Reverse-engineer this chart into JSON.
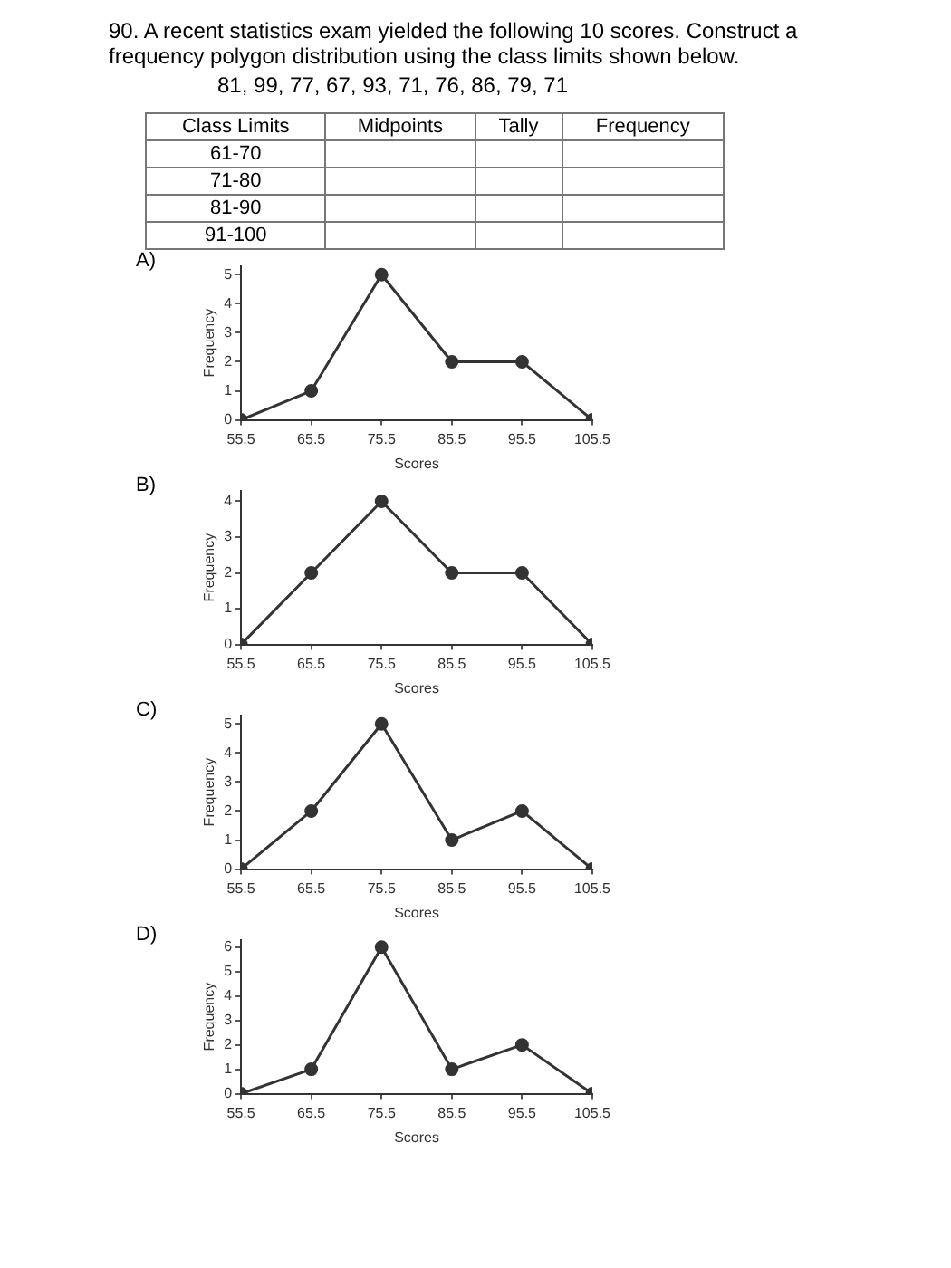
{
  "chart_data": [
    {
      "type": "other",
      "title": "90. A recent statistics exam yielded the following 10 scores. Construct a frequency polygon distribution using the class limits shown below.",
      "subtitle": "81, 99, 77, 67, 93, 71, 76, 86, 79, 71",
      "categories": [
        "Class Limits",
        "Midpoints",
        "Tally",
        "Frequency"
      ],
      "y_categories": [
        "61-70",
        "71-80",
        "81-90",
        "91-100"
      ]
    },
    {
      "type": "line",
      "title": "A)",
      "xlabel": "Scores",
      "ylabel": "Frequency",
      "marker": "circle",
      "x": [
        55.5,
        65.5,
        75.5,
        85.5,
        95.5,
        105.5
      ],
      "xlim": [
        55.5,
        105.5
      ],
      "xticks": [
        55.5,
        65.5,
        75.5,
        85.5,
        95.5,
        105.5
      ],
      "ylim": [
        0,
        5.3
      ],
      "yticks": [
        0,
        1,
        2,
        3,
        4,
        5
      ],
      "series": [
        {
          "color": "#333333",
          "values": [
            0,
            1,
            5,
            2,
            2,
            0
          ]
        }
      ]
    },
    {
      "type": "line",
      "title": "B)",
      "xlabel": "Scores",
      "ylabel": "Frequency",
      "marker": "circle",
      "x": [
        55.5,
        65.5,
        75.5,
        85.5,
        95.5,
        105.5
      ],
      "xlim": [
        55.5,
        105.5
      ],
      "xticks": [
        55.5,
        65.5,
        75.5,
        85.5,
        95.5,
        105.5
      ],
      "ylim": [
        0,
        4.3
      ],
      "yticks": [
        0,
        1,
        2,
        3,
        4
      ],
      "series": [
        {
          "color": "#333333",
          "values": [
            0,
            2,
            4,
            2,
            2,
            0
          ]
        }
      ]
    },
    {
      "type": "line",
      "title": "C)",
      "xlabel": "Scores",
      "ylabel": "Frequency",
      "marker": "circle",
      "x": [
        55.5,
        65.5,
        75.5,
        85.5,
        95.5,
        105.5
      ],
      "xlim": [
        55.5,
        105.5
      ],
      "xticks": [
        55.5,
        65.5,
        75.5,
        85.5,
        95.5,
        105.5
      ],
      "ylim": [
        0,
        5.3
      ],
      "yticks": [
        0,
        1,
        2,
        3,
        4,
        5
      ],
      "series": [
        {
          "color": "#333333",
          "values": [
            0,
            2,
            5,
            1,
            2,
            0
          ]
        }
      ]
    },
    {
      "type": "line",
      "title": "D)",
      "xlabel": "Scores",
      "ylabel": "Frequency",
      "marker": "circle",
      "x": [
        55.5,
        65.5,
        75.5,
        85.5,
        95.5,
        105.5
      ],
      "xlim": [
        55.5,
        105.5
      ],
      "xticks": [
        55.5,
        65.5,
        75.5,
        85.5,
        95.5,
        105.5
      ],
      "ylim": [
        0,
        6.3
      ],
      "yticks": [
        0,
        1,
        2,
        3,
        4,
        5,
        6
      ],
      "series": [
        {
          "color": "#333333",
          "values": [
            0,
            1,
            6,
            1,
            2,
            0
          ]
        }
      ]
    }
  ]
}
